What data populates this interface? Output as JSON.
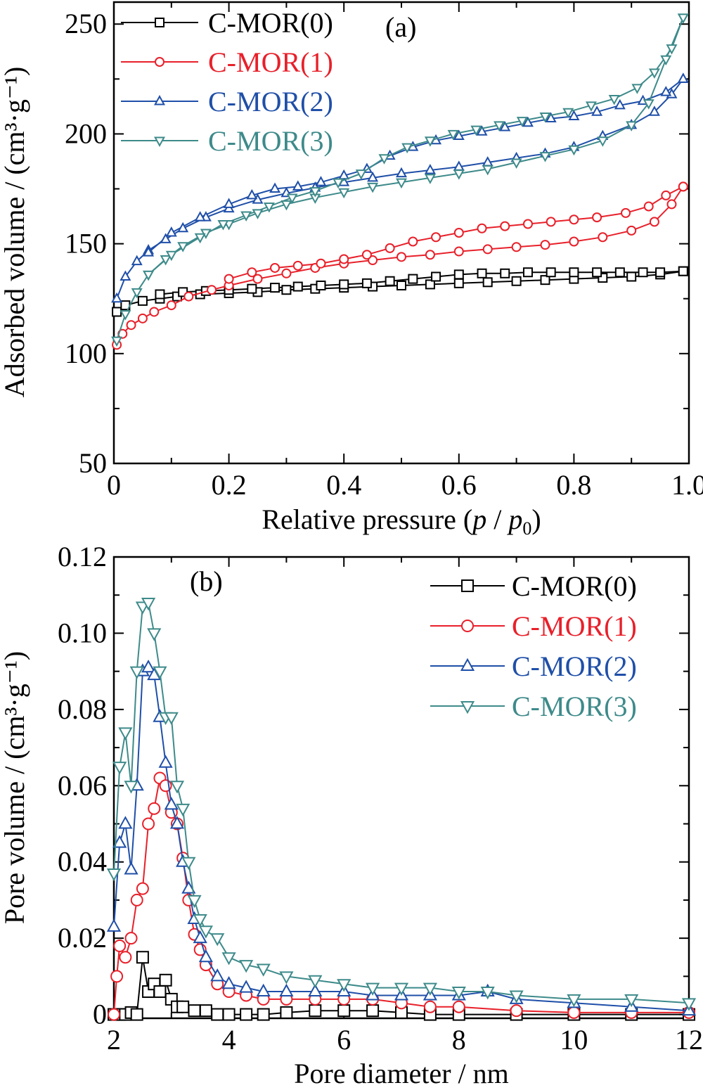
{
  "chart_data": [
    {
      "panel": "(a)",
      "type": "line",
      "xlabel": "Relative pressure (p / p0)",
      "xlabel_parts": {
        "prefix": "Relative pressure (",
        "p": "p",
        "sep": " / ",
        "p0": "p",
        "sub": "0",
        "suffix": ")"
      },
      "ylabel": "Adsorbed volume / (cm³·g⁻¹)",
      "xlim": [
        0,
        1.0
      ],
      "ylim": [
        50,
        260
      ],
      "xticks": [
        "0",
        "0.2",
        "0.4",
        "0.6",
        "0.8",
        "1.0"
      ],
      "xtick_values": [
        0,
        0.2,
        0.4,
        0.6,
        0.8,
        1.0
      ],
      "yticks": [
        "50",
        "100",
        "150",
        "200",
        "250"
      ],
      "ytick_values": [
        50,
        100,
        150,
        200,
        250
      ],
      "legend_position": "top-left",
      "series": [
        {
          "name": "C-MOR(0)",
          "color": "#000000",
          "marker": "square",
          "adsorption_x": [
            0.005,
            0.02,
            0.05,
            0.08,
            0.11,
            0.15,
            0.2,
            0.25,
            0.3,
            0.35,
            0.4,
            0.45,
            0.5,
            0.55,
            0.6,
            0.65,
            0.7,
            0.75,
            0.8,
            0.85,
            0.9,
            0.95,
            0.99
          ],
          "adsorption_y": [
            119,
            122,
            124,
            125,
            126,
            127,
            127.5,
            128,
            129,
            129.5,
            130,
            130.5,
            131,
            131.5,
            132,
            132.5,
            133,
            133.5,
            134,
            134.5,
            135,
            136,
            137.5
          ],
          "desorption_x": [
            0.99,
            0.95,
            0.92,
            0.88,
            0.84,
            0.8,
            0.76,
            0.72,
            0.68,
            0.64,
            0.6,
            0.56,
            0.52,
            0.48,
            0.44,
            0.4,
            0.36,
            0.32,
            0.28,
            0.24,
            0.2,
            0.16,
            0.12,
            0.08
          ],
          "desorption_y": [
            137.5,
            137,
            137,
            137,
            137,
            137,
            137,
            137,
            136.5,
            136.5,
            136,
            135,
            134,
            133,
            132,
            131.5,
            131,
            130.5,
            130,
            129.5,
            129,
            128.5,
            128,
            127
          ]
        },
        {
          "name": "C-MOR(1)",
          "color": "#e8202a",
          "marker": "circle",
          "adsorption_x": [
            0.005,
            0.015,
            0.03,
            0.05,
            0.07,
            0.1,
            0.13,
            0.17,
            0.2,
            0.25,
            0.3,
            0.35,
            0.4,
            0.45,
            0.5,
            0.55,
            0.6,
            0.65,
            0.7,
            0.75,
            0.8,
            0.85,
            0.9,
            0.94,
            0.97,
            0.99
          ],
          "adsorption_y": [
            104,
            109,
            113,
            116,
            119,
            122,
            126,
            129,
            131,
            134,
            136.5,
            139,
            141,
            142.5,
            144,
            145,
            146.5,
            147.5,
            148.5,
            149.5,
            151,
            153,
            156,
            160,
            168,
            176
          ],
          "desorption_x": [
            0.99,
            0.96,
            0.93,
            0.89,
            0.84,
            0.8,
            0.76,
            0.72,
            0.68,
            0.64,
            0.6,
            0.56,
            0.52,
            0.48,
            0.44,
            0.4,
            0.36,
            0.32,
            0.28,
            0.24,
            0.2
          ],
          "desorption_y": [
            176,
            172,
            167,
            164,
            162,
            161,
            160,
            159,
            158,
            157,
            155,
            153,
            151,
            148,
            145,
            143,
            141,
            140,
            139,
            137,
            134
          ]
        },
        {
          "name": "C-MOR(2)",
          "color": "#1f4fa8",
          "marker": "triangle-up",
          "adsorption_x": [
            0.005,
            0.02,
            0.04,
            0.06,
            0.09,
            0.12,
            0.16,
            0.2,
            0.25,
            0.3,
            0.35,
            0.4,
            0.45,
            0.5,
            0.55,
            0.6,
            0.65,
            0.7,
            0.75,
            0.8,
            0.85,
            0.9,
            0.94,
            0.97,
            0.99
          ],
          "adsorption_y": [
            125,
            135,
            142,
            147,
            152,
            157,
            162,
            166,
            170,
            173,
            175.5,
            178,
            180,
            182,
            183.5,
            185,
            187,
            189,
            191,
            194,
            199,
            204,
            210,
            218,
            225
          ],
          "desorption_x": [
            0.99,
            0.96,
            0.92,
            0.88,
            0.84,
            0.8,
            0.76,
            0.72,
            0.68,
            0.64,
            0.6,
            0.56,
            0.52,
            0.48,
            0.44,
            0.4,
            0.36,
            0.32,
            0.28,
            0.24,
            0.2,
            0.15,
            0.1,
            0.06
          ],
          "desorption_y": [
            225,
            219,
            215,
            213,
            210,
            208,
            207,
            205,
            203,
            201,
            199,
            197,
            194,
            190,
            184,
            181,
            178,
            176,
            175,
            172,
            168,
            162,
            155,
            146
          ]
        },
        {
          "name": "C-MOR(3)",
          "color": "#3e8a8a",
          "marker": "triangle-down",
          "adsorption_x": [
            0.005,
            0.02,
            0.04,
            0.06,
            0.09,
            0.12,
            0.16,
            0.2,
            0.25,
            0.3,
            0.35,
            0.4,
            0.45,
            0.5,
            0.55,
            0.6,
            0.65,
            0.7,
            0.75,
            0.8,
            0.85,
            0.9,
            0.93,
            0.96,
            0.99
          ],
          "adsorption_y": [
            106,
            118,
            128,
            136,
            143,
            149,
            155,
            159,
            164,
            168,
            171,
            173.5,
            176,
            178,
            180,
            182,
            184,
            187,
            190,
            193,
            197,
            204,
            214,
            234,
            253
          ],
          "desorption_x": [
            0.99,
            0.97,
            0.94,
            0.91,
            0.87,
            0.83,
            0.79,
            0.75,
            0.71,
            0.67,
            0.63,
            0.59,
            0.55,
            0.51,
            0.47,
            0.43,
            0.39,
            0.35,
            0.31,
            0.27,
            0.23,
            0.19,
            0.15,
            0.1,
            0.06
          ],
          "desorption_y": [
            253,
            239,
            228,
            221,
            216,
            213,
            210,
            208,
            206,
            204,
            202,
            200,
            197,
            194,
            189,
            182,
            178,
            174,
            171,
            167,
            163,
            159,
            153,
            145,
            136
          ]
        }
      ]
    },
    {
      "panel": "(b)",
      "type": "line",
      "xlabel": "Pore diameter / nm",
      "ylabel": "Pore volume / (cm³·g⁻¹)",
      "xlim": [
        2,
        12
      ],
      "ylim": [
        -0.001,
        0.12
      ],
      "xticks": [
        "2",
        "4",
        "6",
        "8",
        "10",
        "12"
      ],
      "xtick_values": [
        2,
        4,
        6,
        8,
        10,
        12
      ],
      "yticks": [
        "0",
        "0.02",
        "0.04",
        "0.06",
        "0.08",
        "0.10",
        "0.12"
      ],
      "ytick_values": [
        0,
        0.02,
        0.04,
        0.06,
        0.08,
        0.1,
        0.12
      ],
      "legend_position": "top-right",
      "series": [
        {
          "name": "C-MOR(0)",
          "color": "#000000",
          "marker": "square",
          "x": [
            2.0,
            2.1,
            2.2,
            2.3,
            2.4,
            2.5,
            2.6,
            2.7,
            2.8,
            2.9,
            3.0,
            3.1,
            3.2,
            3.4,
            3.6,
            3.8,
            4.0,
            4.3,
            4.6,
            5.0,
            5.5,
            6.0,
            6.5,
            7.0,
            7.5,
            8.0,
            9.0,
            10.0,
            11.0,
            12.0
          ],
          "y": [
            0.0,
            0.0,
            0.0,
            0.0005,
            0.0,
            0.015,
            0.006,
            0.008,
            0.006,
            0.009,
            0.004,
            0.002,
            0.002,
            0.001,
            0.001,
            0.0,
            0.0,
            0.0,
            0.0,
            0.0005,
            0.001,
            0.001,
            0.001,
            0.0005,
            0.0,
            0.0,
            0.0,
            0.0,
            0.0,
            0.0
          ]
        },
        {
          "name": "C-MOR(1)",
          "color": "#e8202a",
          "marker": "circle",
          "x": [
            2.0,
            2.05,
            2.1,
            2.2,
            2.3,
            2.4,
            2.5,
            2.6,
            2.7,
            2.8,
            2.9,
            3.0,
            3.1,
            3.2,
            3.3,
            3.4,
            3.5,
            3.6,
            3.8,
            4.0,
            4.3,
            4.6,
            5.0,
            5.5,
            6.0,
            6.5,
            7.0,
            7.5,
            8.0,
            9.0,
            10.0,
            11.0,
            12.0
          ],
          "y": [
            0.0,
            0.01,
            0.018,
            0.015,
            0.02,
            0.03,
            0.033,
            0.05,
            0.054,
            0.062,
            0.06,
            0.053,
            0.05,
            0.041,
            0.03,
            0.021,
            0.017,
            0.013,
            0.008,
            0.006,
            0.005,
            0.004,
            0.004,
            0.004,
            0.004,
            0.004,
            0.003,
            0.002,
            0.002,
            0.001,
            0.0005,
            0.0005,
            0.0005
          ]
        },
        {
          "name": "C-MOR(2)",
          "color": "#1f4fa8",
          "marker": "triangle-up",
          "x": [
            2.0,
            2.1,
            2.2,
            2.3,
            2.4,
            2.5,
            2.6,
            2.7,
            2.8,
            2.9,
            3.0,
            3.1,
            3.2,
            3.3,
            3.4,
            3.5,
            3.6,
            3.8,
            4.0,
            4.3,
            4.6,
            5.0,
            5.5,
            6.0,
            6.5,
            7.0,
            7.5,
            8.0,
            8.5,
            9.0,
            10.0,
            11.0,
            12.0
          ],
          "y": [
            0.023,
            0.045,
            0.05,
            0.038,
            0.06,
            0.09,
            0.091,
            0.089,
            0.078,
            0.066,
            0.055,
            0.05,
            0.04,
            0.033,
            0.025,
            0.02,
            0.015,
            0.01,
            0.008,
            0.007,
            0.006,
            0.006,
            0.006,
            0.006,
            0.005,
            0.005,
            0.005,
            0.005,
            0.006,
            0.004,
            0.003,
            0.002,
            0.001
          ]
        },
        {
          "name": "C-MOR(3)",
          "color": "#3e8a8a",
          "marker": "triangle-down",
          "x": [
            2.0,
            2.1,
            2.2,
            2.3,
            2.4,
            2.5,
            2.6,
            2.7,
            2.8,
            2.9,
            3.0,
            3.1,
            3.2,
            3.3,
            3.4,
            3.5,
            3.6,
            3.8,
            4.0,
            4.3,
            4.6,
            5.0,
            5.5,
            6.0,
            6.5,
            7.0,
            7.5,
            8.0,
            8.5,
            9.0,
            10.0,
            11.0,
            12.0
          ],
          "y": [
            0.037,
            0.065,
            0.074,
            0.06,
            0.09,
            0.107,
            0.108,
            0.1,
            0.09,
            0.078,
            0.078,
            0.06,
            0.054,
            0.04,
            0.03,
            0.025,
            0.022,
            0.02,
            0.015,
            0.013,
            0.012,
            0.01,
            0.009,
            0.008,
            0.007,
            0.007,
            0.007,
            0.006,
            0.006,
            0.005,
            0.004,
            0.004,
            0.003
          ]
        }
      ]
    }
  ]
}
